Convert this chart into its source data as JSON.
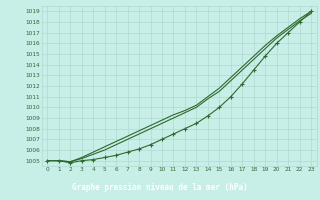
{
  "xlabel": "Graphe pression niveau de la mer (hPa)",
  "x": [
    0,
    1,
    2,
    3,
    4,
    5,
    6,
    7,
    8,
    9,
    10,
    11,
    12,
    13,
    14,
    15,
    16,
    17,
    18,
    19,
    20,
    21,
    22,
    23
  ],
  "line_markers": [
    1005,
    1005,
    1004.8,
    1005,
    1005.1,
    1005.3,
    1005.5,
    1005.8,
    1006.1,
    1006.5,
    1007.0,
    1007.5,
    1008.0,
    1008.5,
    1009.2,
    1010.0,
    1011.0,
    1012.2,
    1013.5,
    1014.8,
    1016.0,
    1017.0,
    1018.0,
    1019.0
  ],
  "line_smooth1": [
    1005,
    1005,
    1004.9,
    1005.2,
    1005.6,
    1006.0,
    1006.5,
    1007.0,
    1007.5,
    1008.0,
    1008.5,
    1009.0,
    1009.5,
    1010.0,
    1010.8,
    1011.5,
    1012.5,
    1013.5,
    1014.5,
    1015.5,
    1016.5,
    1017.3,
    1018.1,
    1018.8
  ],
  "line_smooth2": [
    1005,
    1005,
    1004.9,
    1005.3,
    1005.8,
    1006.3,
    1006.8,
    1007.3,
    1007.8,
    1008.3,
    1008.8,
    1009.3,
    1009.7,
    1010.2,
    1011.0,
    1011.8,
    1012.8,
    1013.8,
    1014.8,
    1015.8,
    1016.7,
    1017.5,
    1018.3,
    1019.0
  ],
  "ylim": [
    1004.5,
    1019.5
  ],
  "yticks": [
    1005,
    1006,
    1007,
    1008,
    1009,
    1010,
    1011,
    1012,
    1013,
    1014,
    1015,
    1016,
    1017,
    1018,
    1019
  ],
  "xlim": [
    -0.5,
    23.5
  ],
  "xticks": [
    0,
    1,
    2,
    3,
    4,
    5,
    6,
    7,
    8,
    9,
    10,
    11,
    12,
    13,
    14,
    15,
    16,
    17,
    18,
    19,
    20,
    21,
    22,
    23
  ],
  "line_color": "#2d6a2d",
  "bg_color": "#c8eee8",
  "grid_color": "#b0d8d0",
  "marker_color": "#2d6a2d",
  "bottom_bg": "#4a7a4a",
  "label_color": "white"
}
